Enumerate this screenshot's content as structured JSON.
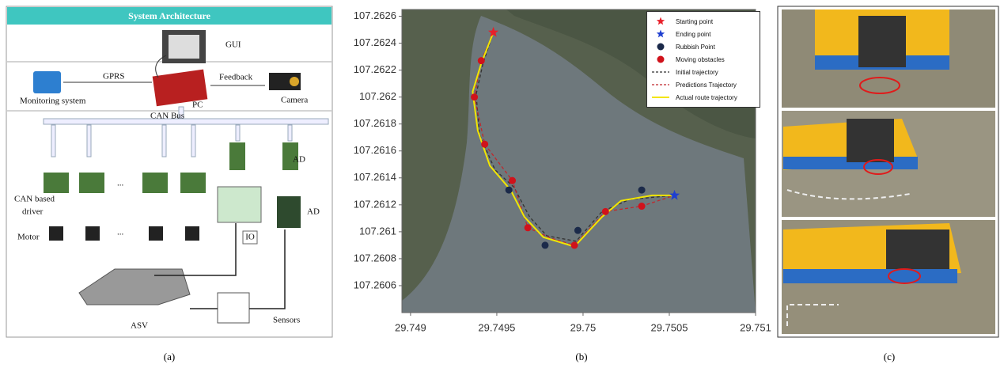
{
  "panel_a": {
    "title": "System Architecture",
    "gui": "GUI",
    "gprs": "GPRS",
    "feedback": "Feedback",
    "monitoring": "Monitoring system",
    "pc": "PC",
    "camera": "Camera",
    "can_bus": "CAN Bus",
    "ad_top": "AD",
    "ad_bottom": "AD",
    "can_driver": [
      "CAN based",
      "driver"
    ],
    "motor": "Motor",
    "ellipsis": [
      "...",
      "..."
    ],
    "io": "IO",
    "asv": "ASV",
    "sensors": "Sensors"
  },
  "chart_data": {
    "type": "scatter",
    "xlim": [
      29.74895,
      29.751
    ],
    "xticks": [
      29.749,
      29.7495,
      29.75,
      29.7505,
      29.751
    ],
    "ylim": [
      107.2604,
      107.26265
    ],
    "yticks": [
      107.2606,
      107.2608,
      107.261,
      107.2612,
      107.2614,
      107.2616,
      107.2618,
      107.262,
      107.2622,
      107.2624,
      107.2626
    ],
    "grid": false,
    "legend": "upper right",
    "series": [
      {
        "name": "Starting point",
        "color": "#e8202a",
        "style": "star",
        "x": [
          29.74948
        ],
        "values": [
          107.26248
        ]
      },
      {
        "name": "Ending point",
        "color": "#1f3fd0",
        "style": "star",
        "x": [
          29.75053
        ],
        "values": [
          107.26127
        ]
      },
      {
        "name": "Rubbish Point",
        "color": "#1b2a4a",
        "style": "dot",
        "x": [
          29.74957,
          29.74978,
          29.74997,
          29.75034
        ],
        "values": [
          107.26131,
          107.2609,
          107.26101,
          107.26131
        ]
      },
      {
        "name": "Moving obstacles",
        "color": "#d0121b",
        "style": "dot",
        "x": [
          29.74941,
          29.74937,
          29.74943,
          29.74959,
          29.74968,
          29.74995,
          29.75013,
          29.75034
        ],
        "values": [
          107.26227,
          107.262,
          107.26165,
          107.26138,
          107.26103,
          107.2609,
          107.26115,
          107.26119
        ]
      },
      {
        "name": "Initial trajectory",
        "color": "#333333",
        "style": "dashed",
        "x": [
          29.74948,
          29.74942,
          29.74938,
          29.7494,
          29.74949,
          29.7496,
          29.74969,
          29.74979,
          29.74996,
          29.75011,
          29.75027,
          29.75053
        ],
        "values": [
          107.26248,
          107.26225,
          107.26202,
          107.26172,
          107.26146,
          107.26133,
          107.26111,
          107.26097,
          107.26093,
          107.26115,
          107.26124,
          107.26127
        ]
      },
      {
        "name": "Predictions Trajectory",
        "color": "#c0282d",
        "style": "dashed",
        "x": [
          29.74948,
          29.74941,
          29.74937,
          29.74943,
          29.74959,
          29.74968,
          29.74982,
          29.74995,
          29.75013,
          29.75034,
          29.75053
        ],
        "values": [
          107.26248,
          107.26227,
          107.262,
          107.26165,
          107.26138,
          107.26103,
          107.26095,
          107.2609,
          107.26115,
          107.26119,
          107.26127
        ]
      },
      {
        "name": "Actual route trajectory",
        "color": "#f2e600",
        "style": "solid",
        "x": [
          29.74948,
          29.74941,
          29.74936,
          29.74939,
          29.74946,
          29.74958,
          29.74966,
          29.74977,
          29.74995,
          29.75011,
          29.75022,
          29.7504,
          29.75053
        ],
        "values": [
          107.26248,
          107.26225,
          107.26204,
          107.26175,
          107.26149,
          107.26131,
          107.26111,
          107.26096,
          107.26089,
          107.26111,
          107.26123,
          107.26127,
          107.26127
        ]
      }
    ]
  },
  "captions": [
    "(a)",
    "(b)",
    "(c)"
  ]
}
